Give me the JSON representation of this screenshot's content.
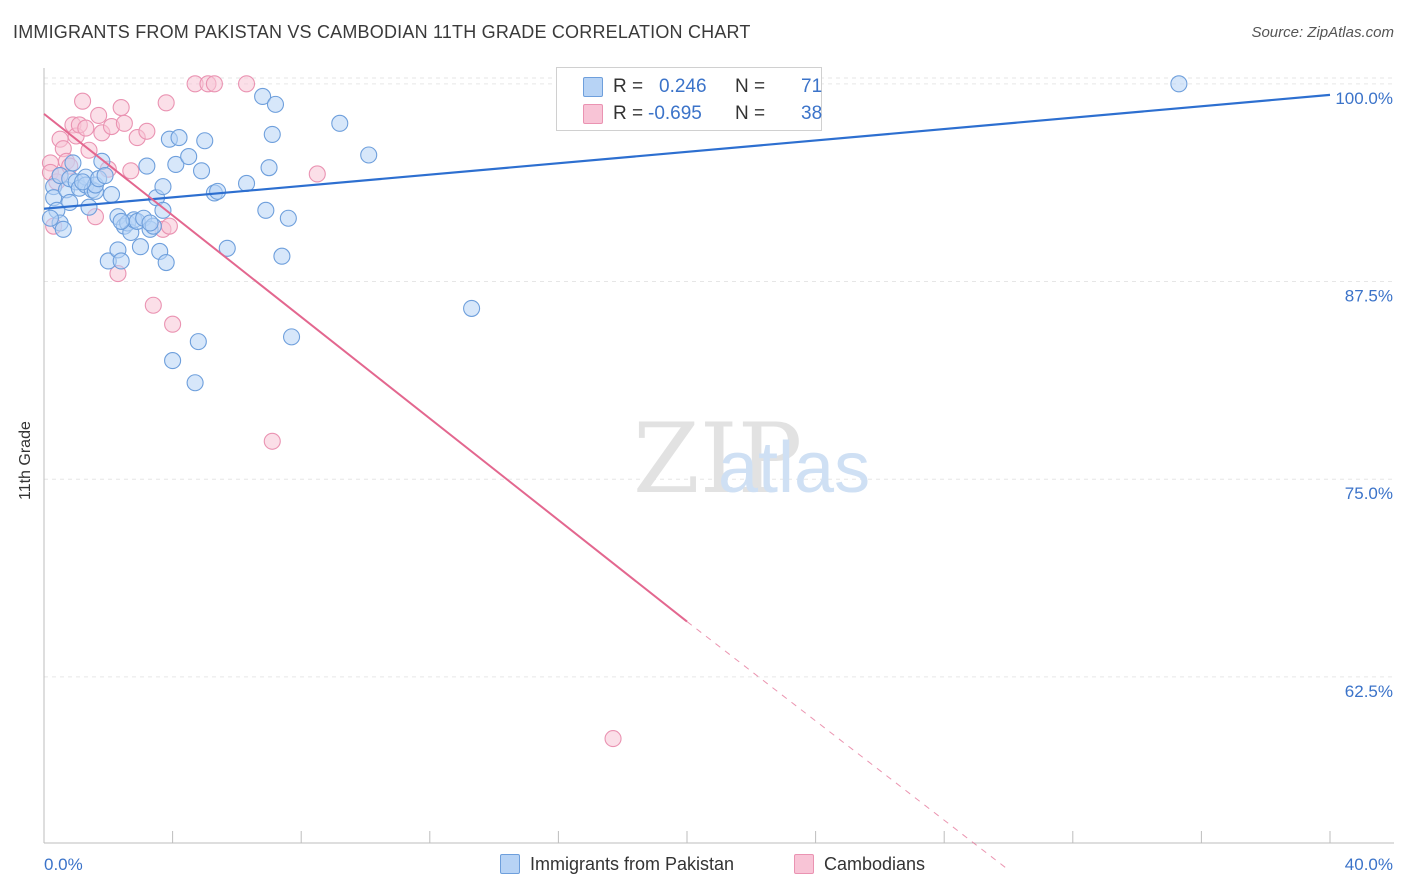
{
  "title": "IMMIGRANTS FROM PAKISTAN VS CAMBODIAN 11TH GRADE CORRELATION CHART",
  "source": "Source: ZipAtlas.com",
  "watermark": {
    "zip": "ZIP",
    "atlas": "atlas"
  },
  "colors": {
    "blue_fill": "#b7d3f5",
    "blue_stroke": "#6e9fdc",
    "blue_line": "#2d6fd0",
    "pink_fill": "#f8c4d6",
    "pink_stroke": "#ea93b2",
    "pink_line": "#e3678f",
    "tick_text": "#3b73c9",
    "grid": "#e6e6e6"
  },
  "legend": {
    "r_label": "R =",
    "n_label": "N =",
    "rows": [
      {
        "r": "0.246",
        "n": "71"
      },
      {
        "r": "-0.695",
        "n": "38"
      }
    ]
  },
  "bottom_legend": [
    "Immigrants from Pakistan",
    "Cambodians"
  ],
  "chart_data": {
    "type": "scatter",
    "title": "IMMIGRANTS FROM PAKISTAN VS CAMBODIAN 11TH GRADE CORRELATION CHART",
    "xlabel": "",
    "ylabel": "11th Grade",
    "xlim": [
      0,
      40
    ],
    "ylim": [
      52,
      101
    ],
    "x_tick_labels": [
      "0.0%",
      "40.0%"
    ],
    "y_ticks": [
      62.5,
      75.0,
      87.5,
      100.0
    ],
    "y_tick_labels": [
      "62.5%",
      "75.0%",
      "87.5%",
      "100.0%"
    ],
    "grid": true,
    "legend_position": "top-center",
    "series": [
      {
        "name": "Immigrants from Pakistan",
        "stats": {
          "R": 0.246,
          "N": 71
        },
        "trend": {
          "x0": 0,
          "y0": 92.1,
          "x1": 40,
          "y1": 99.3
        },
        "points": [
          [
            0.3,
            93.5
          ],
          [
            0.3,
            92.8
          ],
          [
            0.4,
            92.0
          ],
          [
            0.5,
            91.2
          ],
          [
            0.5,
            94.2
          ],
          [
            0.6,
            90.8
          ],
          [
            0.7,
            93.3
          ],
          [
            0.8,
            94.0
          ],
          [
            0.8,
            92.5
          ],
          [
            0.9,
            95.0
          ],
          [
            1.0,
            93.8
          ],
          [
            1.1,
            93.4
          ],
          [
            1.3,
            94.1
          ],
          [
            1.3,
            93.6
          ],
          [
            1.4,
            92.2
          ],
          [
            1.5,
            93.3
          ],
          [
            1.6,
            93.2
          ],
          [
            1.6,
            93.6
          ],
          [
            1.7,
            94.0
          ],
          [
            1.8,
            95.1
          ],
          [
            1.9,
            94.2
          ],
          [
            2.0,
            88.8
          ],
          [
            2.1,
            93.0
          ],
          [
            2.3,
            91.6
          ],
          [
            2.3,
            89.5
          ],
          [
            2.4,
            88.8
          ],
          [
            2.5,
            91.0
          ],
          [
            2.6,
            91.2
          ],
          [
            2.7,
            90.6
          ],
          [
            2.8,
            91.4
          ],
          [
            2.9,
            91.3
          ],
          [
            3.0,
            89.7
          ],
          [
            3.1,
            91.5
          ],
          [
            3.2,
            94.8
          ],
          [
            3.3,
            90.8
          ],
          [
            3.4,
            91.0
          ],
          [
            3.5,
            92.8
          ],
          [
            3.6,
            89.4
          ],
          [
            3.7,
            92.0
          ],
          [
            3.7,
            93.5
          ],
          [
            3.8,
            88.7
          ],
          [
            3.9,
            96.5
          ],
          [
            4.0,
            82.5
          ],
          [
            4.1,
            94.9
          ],
          [
            4.2,
            96.6
          ],
          [
            4.5,
            95.4
          ],
          [
            4.7,
            81.1
          ],
          [
            4.8,
            83.7
          ],
          [
            4.9,
            94.5
          ],
          [
            5.0,
            96.4
          ],
          [
            5.3,
            93.1
          ],
          [
            5.4,
            93.2
          ],
          [
            5.7,
            89.6
          ],
          [
            6.3,
            93.7
          ],
          [
            6.8,
            99.2
          ],
          [
            6.9,
            92.0
          ],
          [
            7.0,
            94.7
          ],
          [
            7.1,
            96.8
          ],
          [
            7.2,
            98.7
          ],
          [
            7.4,
            89.1
          ],
          [
            7.6,
            91.5
          ],
          [
            7.7,
            84.0
          ],
          [
            9.2,
            97.5
          ],
          [
            10.1,
            95.5
          ],
          [
            13.3,
            85.8
          ],
          [
            16.4,
            100.0
          ],
          [
            35.3,
            100.0
          ],
          [
            0.2,
            91.5
          ],
          [
            1.2,
            93.8
          ],
          [
            3.3,
            91.2
          ],
          [
            2.4,
            91.3
          ]
        ]
      },
      {
        "name": "Cambodians",
        "stats": {
          "R": -0.695,
          "N": 38
        },
        "trend": {
          "x0": 0,
          "y0": 98.1,
          "x1": 20,
          "y1": 66.0
        },
        "trend_dashed_extension": {
          "x0": 20,
          "y0": 66.0,
          "x1": 30,
          "y1": 50.3
        },
        "points": [
          [
            0.2,
            95.0
          ],
          [
            0.2,
            94.4
          ],
          [
            0.3,
            91.0
          ],
          [
            0.4,
            93.8
          ],
          [
            0.5,
            94.2
          ],
          [
            0.5,
            96.5
          ],
          [
            0.6,
            95.9
          ],
          [
            0.7,
            95.1
          ],
          [
            0.8,
            94.8
          ],
          [
            0.9,
            97.4
          ],
          [
            1.0,
            96.7
          ],
          [
            1.1,
            97.4
          ],
          [
            1.2,
            98.9
          ],
          [
            1.3,
            97.2
          ],
          [
            1.4,
            95.8
          ],
          [
            1.6,
            91.6
          ],
          [
            1.7,
            98.0
          ],
          [
            1.8,
            96.9
          ],
          [
            2.0,
            94.6
          ],
          [
            2.1,
            97.3
          ],
          [
            2.3,
            88.0
          ],
          [
            2.4,
            98.5
          ],
          [
            2.5,
            97.5
          ],
          [
            2.7,
            94.5
          ],
          [
            2.9,
            96.6
          ],
          [
            3.2,
            97.0
          ],
          [
            3.4,
            86.0
          ],
          [
            3.7,
            90.8
          ],
          [
            3.8,
            98.8
          ],
          [
            3.9,
            91.0
          ],
          [
            4.0,
            84.8
          ],
          [
            4.7,
            100.0
          ],
          [
            5.1,
            100.0
          ],
          [
            5.3,
            100.0
          ],
          [
            6.3,
            100.0
          ],
          [
            7.1,
            77.4
          ],
          [
            8.5,
            94.3
          ],
          [
            17.7,
            58.6
          ]
        ]
      }
    ]
  }
}
